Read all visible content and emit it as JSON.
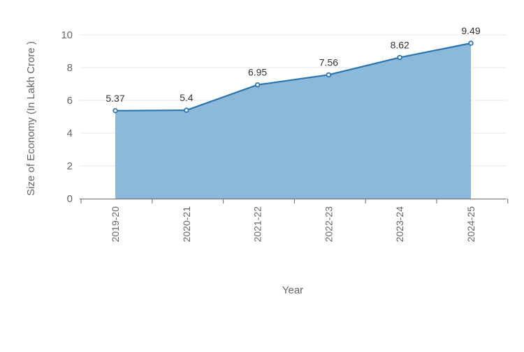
{
  "chart_data": {
    "type": "area",
    "categories": [
      "2019-20",
      "2020-21",
      "2021-22",
      "2022-23",
      "2023-24",
      "2024-25"
    ],
    "values": [
      5.37,
      5.4,
      6.95,
      7.56,
      8.62,
      9.49
    ],
    "value_labels": [
      "5.37",
      "5.4",
      "6.95",
      "7.56",
      "8.62",
      "9.49"
    ],
    "xlabel": "Year",
    "ylabel": "Size of Economy (In Lakh Crore )",
    "ylim": [
      0,
      10
    ],
    "y_ticks": [
      "0",
      "2",
      "4",
      "6",
      "8",
      "10"
    ],
    "grid": true,
    "colors": {
      "line": "#2a73ad",
      "fill": "#7fb0d6",
      "grid": "#e4e8f0",
      "axis": "#666666"
    }
  }
}
